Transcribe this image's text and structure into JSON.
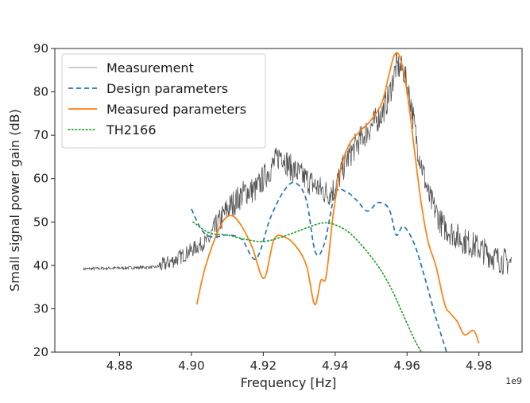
{
  "chart_data": {
    "type": "line",
    "xlabel": "Frequency [Hz]",
    "ylabel": "Small signal power gain (dB)",
    "x_offset_label": "1e9",
    "xlim": [
      4.862,
      4.992
    ],
    "ylim": [
      20,
      90
    ],
    "x_ticks": [
      4.88,
      4.9,
      4.92,
      4.94,
      4.96,
      4.98
    ],
    "x_tick_labels": [
      "4.88",
      "4.90",
      "4.92",
      "4.94",
      "4.96",
      "4.98"
    ],
    "y_ticks": [
      20,
      30,
      40,
      50,
      60,
      70,
      80,
      90
    ],
    "y_tick_labels": [
      "20",
      "30",
      "40",
      "50",
      "60",
      "70",
      "80",
      "90"
    ],
    "grid": false,
    "legend_position": "top-left",
    "series": [
      {
        "name": "Measurement",
        "color": "#555555",
        "style": "solid",
        "noisy": true,
        "x": [
          4.87,
          4.88,
          4.89,
          4.892,
          4.896,
          4.9,
          4.905,
          4.91,
          4.915,
          4.918,
          4.92,
          4.923,
          4.925,
          4.927,
          4.93,
          4.935,
          4.938,
          4.94,
          4.943,
          4.946,
          4.95,
          4.953,
          4.955,
          4.957,
          4.959,
          4.961,
          4.963,
          4.966,
          4.97,
          4.975,
          4.98,
          4.985,
          4.989
        ],
        "y": [
          39.2,
          39.4,
          39.6,
          40.0,
          41.5,
          43.5,
          46.0,
          53.0,
          57.0,
          57.5,
          60.0,
          63.5,
          66.0,
          63.0,
          61.0,
          58.0,
          56.5,
          58.0,
          64.0,
          68.0,
          72.0,
          75.0,
          79.0,
          86.0,
          85.0,
          78.0,
          67.0,
          56.0,
          49.0,
          46.0,
          44.0,
          41.5,
          40.5
        ]
      },
      {
        "name": "Design parameters",
        "color": "#1f77b4",
        "style": "dashed",
        "x": [
          4.9,
          4.903,
          4.906,
          4.91,
          4.914,
          4.918,
          4.922,
          4.926,
          4.929,
          4.932,
          4.9345,
          4.937,
          4.94,
          4.943,
          4.946,
          4.949,
          4.952,
          4.955,
          4.957,
          4.959,
          4.962,
          4.965,
          4.968,
          4.971
        ],
        "y": [
          53.0,
          48.0,
          46.5,
          47.0,
          46.0,
          41.5,
          51.0,
          57.5,
          59.0,
          55.0,
          43.0,
          45.0,
          56.5,
          57.0,
          55.0,
          52.5,
          54.5,
          53.0,
          47.0,
          49.0,
          45.0,
          37.0,
          28.0,
          20.0
        ]
      },
      {
        "name": "Measured parameters",
        "color": "#ff7f0e",
        "style": "solid",
        "x": [
          4.9015,
          4.904,
          4.908,
          4.911,
          4.914,
          4.917,
          4.9202,
          4.923,
          4.926,
          4.929,
          4.932,
          4.9343,
          4.936,
          4.9375,
          4.9395,
          4.9415,
          4.944,
          4.947,
          4.95,
          4.953,
          4.955,
          4.9565,
          4.958,
          4.96,
          4.962,
          4.964,
          4.966,
          4.968,
          4.9705,
          4.972,
          4.974,
          4.976,
          4.9785,
          4.98
        ],
        "y": [
          31.0,
          40.0,
          49.0,
          51.5,
          49.0,
          44.0,
          37.0,
          46.0,
          46.5,
          44.5,
          40.0,
          31.0,
          36.5,
          37.5,
          52.0,
          62.0,
          68.0,
          71.0,
          73.5,
          77.5,
          84.0,
          88.5,
          88.0,
          80.0,
          67.0,
          54.0,
          45.0,
          40.0,
          31.0,
          29.0,
          27.0,
          24.0,
          25.0,
          22.0
        ]
      },
      {
        "name": "TH2166",
        "color": "#2ca02c",
        "style": "dotted",
        "x": [
          4.9005,
          4.905,
          4.91,
          4.915,
          4.92,
          4.925,
          4.93,
          4.935,
          4.938,
          4.941,
          4.944,
          4.947,
          4.95,
          4.953,
          4.956,
          4.959,
          4.962,
          4.964
        ],
        "y": [
          50.0,
          47.5,
          47.0,
          46.0,
          45.5,
          46.5,
          48.0,
          49.5,
          49.8,
          49.0,
          47.5,
          45.0,
          42.0,
          38.5,
          34.0,
          28.5,
          23.0,
          20.0
        ]
      }
    ]
  }
}
